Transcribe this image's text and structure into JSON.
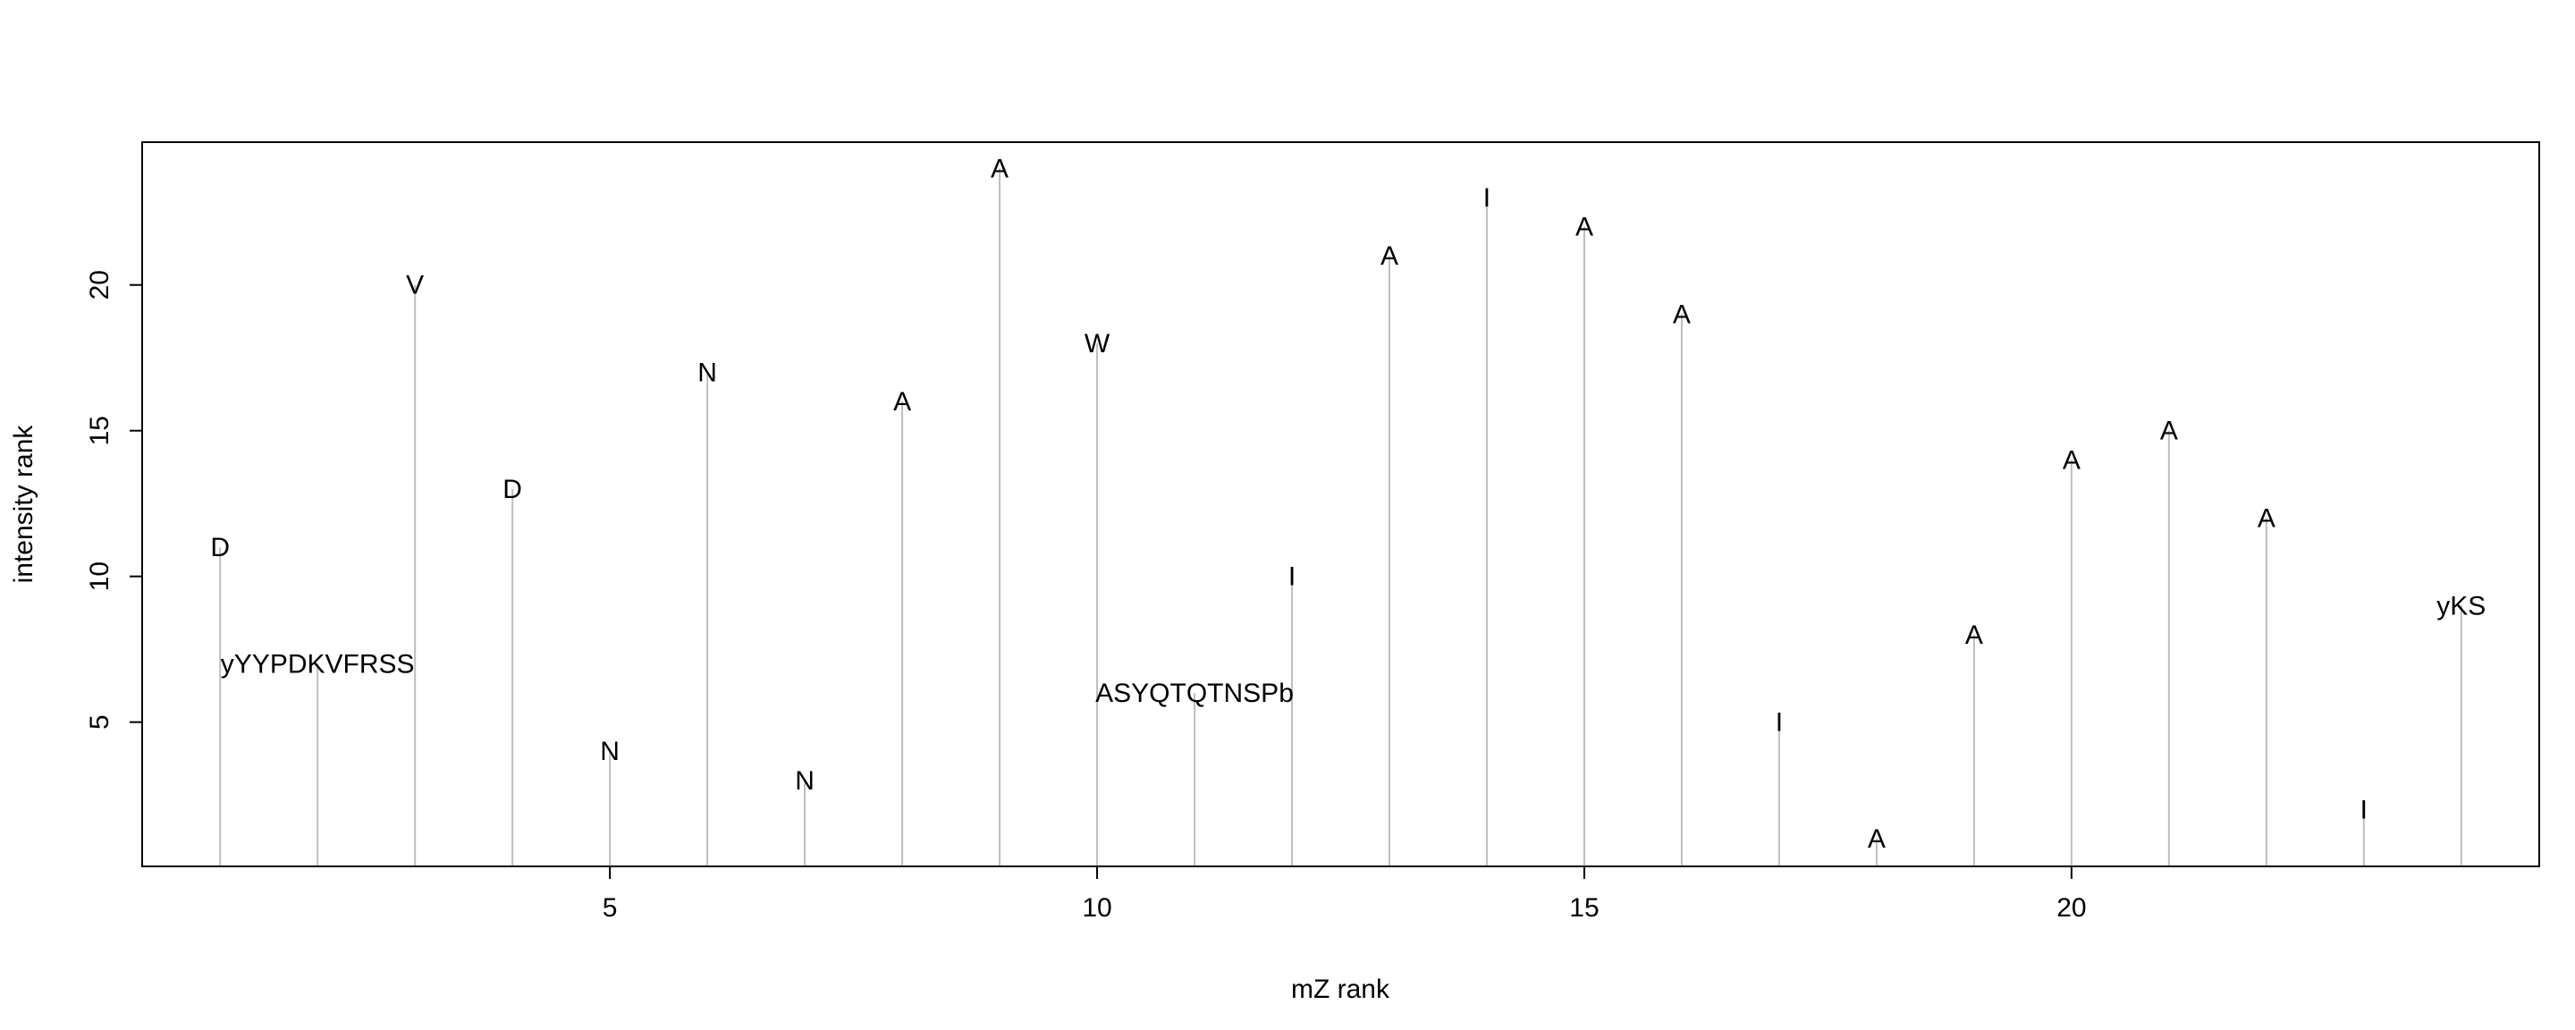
{
  "chart_data": {
    "type": "bar",
    "subtype": "stem",
    "xlabel": "mZ rank",
    "ylabel": "intensity rank",
    "xlim": [
      0.2,
      24.8
    ],
    "ylim": [
      0.05,
      24.9
    ],
    "xticks": [
      5,
      10,
      15,
      20
    ],
    "yticks": [
      5,
      10,
      15,
      20
    ],
    "grid": false,
    "legend": "none",
    "stem_color": "#bebebe",
    "points": [
      {
        "x": 1,
        "y": 11,
        "label": "D"
      },
      {
        "x": 2,
        "y": 7,
        "label": "yYYPDKVFRSS"
      },
      {
        "x": 3,
        "y": 20,
        "label": "V"
      },
      {
        "x": 4,
        "y": 13,
        "label": "D"
      },
      {
        "x": 5,
        "y": 4,
        "label": "N"
      },
      {
        "x": 6,
        "y": 17,
        "label": "N"
      },
      {
        "x": 7,
        "y": 3,
        "label": "N"
      },
      {
        "x": 8,
        "y": 16,
        "label": "A"
      },
      {
        "x": 9,
        "y": 24,
        "label": "A"
      },
      {
        "x": 10,
        "y": 18,
        "label": "W"
      },
      {
        "x": 11,
        "y": 6,
        "label": "ASYQTQTNSPb"
      },
      {
        "x": 12,
        "y": 10,
        "label": "I"
      },
      {
        "x": 13,
        "y": 21,
        "label": "A"
      },
      {
        "x": 14,
        "y": 23,
        "label": "I"
      },
      {
        "x": 15,
        "y": 22,
        "label": "A"
      },
      {
        "x": 16,
        "y": 19,
        "label": "A"
      },
      {
        "x": 17,
        "y": 5,
        "label": "I"
      },
      {
        "x": 18,
        "y": 1,
        "label": "A"
      },
      {
        "x": 19,
        "y": 8,
        "label": "A"
      },
      {
        "x": 20,
        "y": 14,
        "label": "A"
      },
      {
        "x": 21,
        "y": 15,
        "label": "A"
      },
      {
        "x": 22,
        "y": 12,
        "label": "A"
      },
      {
        "x": 23,
        "y": 2,
        "label": "I"
      },
      {
        "x": 24,
        "y": 9,
        "label": "yKS"
      }
    ]
  }
}
